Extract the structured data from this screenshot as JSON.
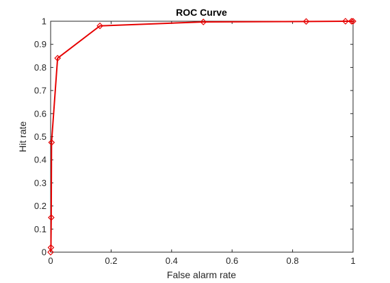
{
  "chart_data": {
    "type": "line",
    "title": "ROC Curve",
    "xlabel": "False alarm rate",
    "ylabel": "Hit rate",
    "xlim": [
      0,
      1
    ],
    "ylim": [
      0,
      1
    ],
    "xticks": [
      "0",
      "0.2",
      "0.4",
      "0.6",
      "0.8",
      "1"
    ],
    "xtick_values": [
      0,
      0.2,
      0.4,
      0.6,
      0.8,
      1
    ],
    "yticks": [
      "0",
      "0.1",
      "0.2",
      "0.3",
      "0.4",
      "0.5",
      "0.6",
      "0.7",
      "0.8",
      "0.9",
      "1"
    ],
    "ytick_values": [
      0,
      0.1,
      0.2,
      0.3,
      0.4,
      0.5,
      0.6,
      0.7,
      0.8,
      0.9,
      1
    ],
    "grid": false,
    "series": [
      {
        "color": "#e60000",
        "marker": "diamond",
        "x": [
          0,
          0.001,
          0.002,
          0.003,
          0.023,
          0.163,
          0.505,
          0.845,
          0.975,
          0.995,
          1
        ],
        "y": [
          0,
          0.02,
          0.15,
          0.475,
          0.84,
          0.98,
          0.997,
          0.999,
          1,
          1,
          1
        ]
      }
    ]
  }
}
